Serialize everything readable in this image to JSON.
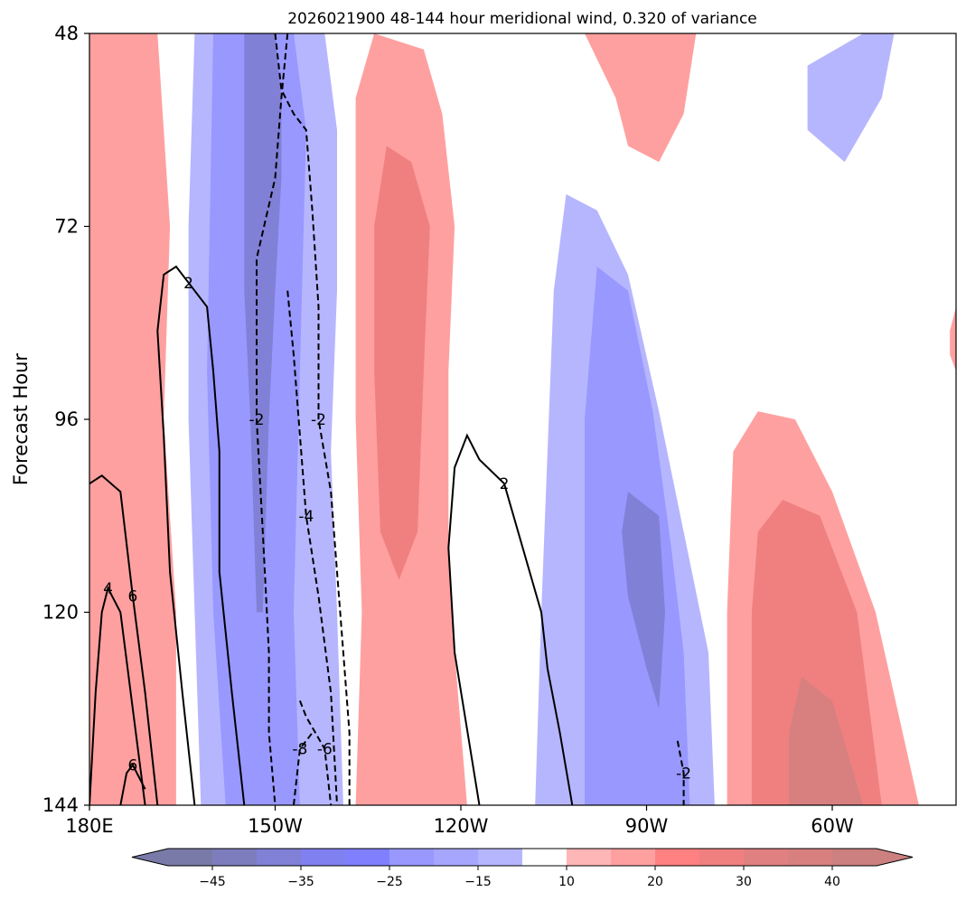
{
  "chart_data": {
    "type": "heatmap",
    "title": "2026021900 48-144 hour meridional wind, 0.320 of variance",
    "xlabel": "",
    "ylabel": "Forecast Hour",
    "x_ticks": [
      "180E",
      "150W",
      "120W",
      "90W",
      "60W"
    ],
    "x_tick_values": [
      -180,
      -150,
      -120,
      -90,
      -60
    ],
    "xlim": [
      -180,
      -40
    ],
    "y_ticks": [
      "48",
      "72",
      "96",
      "120",
      "144"
    ],
    "y_tick_values": [
      48,
      72,
      96,
      120,
      144
    ],
    "ylim": [
      144,
      48
    ],
    "colorbar": {
      "ticks": [
        "−45",
        "−35",
        "−25",
        "−15",
        "10",
        "20",
        "30",
        "40"
      ],
      "tick_values": [
        -45,
        -35,
        -25,
        -15,
        10,
        20,
        30,
        40
      ],
      "levels": [
        -50,
        -45,
        -40,
        -35,
        -30,
        -25,
        -20,
        -15,
        -10,
        10,
        15,
        20,
        25,
        30,
        35,
        40,
        45,
        50
      ],
      "colors": [
        "#7a7aa8",
        "#7d7dbd",
        "#8080d6",
        "#8080f0",
        "#8080ff",
        "#9898ff",
        "#a6a6ff",
        "#b6b6ff",
        "#ffffff",
        "#ffb6b6",
        "#ffa0a0",
        "#ff8080",
        "#f08080",
        "#e08080",
        "#d88080",
        "#cc8080"
      ],
      "extend": "both"
    },
    "contour_labels": [
      "-2",
      "-2",
      "-4",
      "-6",
      "-8",
      "-2",
      "2",
      "2",
      "4",
      "6"
    ],
    "fill_regions": [
      {
        "level": 25,
        "polygon": [
          [
            -180,
            48
          ],
          [
            -172,
            48
          ],
          [
            -171,
            60
          ],
          [
            -170,
            72
          ],
          [
            -172,
            84
          ],
          [
            -170,
            100
          ],
          [
            -169,
            120
          ],
          [
            -168,
            144
          ],
          [
            -180,
            144
          ]
        ]
      },
      {
        "level": 20,
        "polygon": [
          [
            -180,
            48
          ],
          [
            -177,
            48
          ],
          [
            -176,
            72
          ],
          [
            -177,
            96
          ],
          [
            -176,
            120
          ],
          [
            -176,
            144
          ],
          [
            -180,
            144
          ]
        ]
      },
      {
        "level": 15,
        "polygon": [
          [
            -180,
            48
          ],
          [
            -169,
            48
          ],
          [
            -168,
            60
          ],
          [
            -167,
            72
          ],
          [
            -168,
            96
          ],
          [
            -166,
            120
          ],
          [
            -166,
            144
          ],
          [
            -180,
            144
          ]
        ]
      },
      {
        "level": -15,
        "polygon": [
          [
            -163,
            48
          ],
          [
            -142,
            48
          ],
          [
            -140,
            60
          ],
          [
            -140,
            80
          ],
          [
            -141,
            100
          ],
          [
            -140,
            120
          ],
          [
            -139,
            144
          ],
          [
            -162,
            144
          ],
          [
            -163,
            120
          ],
          [
            -164,
            96
          ],
          [
            -164,
            72
          ]
        ]
      },
      {
        "level": -25,
        "polygon": [
          [
            -160,
            48
          ],
          [
            -147,
            48
          ],
          [
            -145,
            60
          ],
          [
            -146,
            90
          ],
          [
            -147,
            120
          ],
          [
            -146,
            144
          ],
          [
            -158,
            144
          ],
          [
            -160,
            120
          ],
          [
            -161,
            90
          ]
        ]
      },
      {
        "level": -40,
        "polygon": [
          [
            -155,
            48
          ],
          [
            -150,
            48
          ],
          [
            -149,
            56
          ],
          [
            -149,
            66
          ],
          [
            -150,
            80
          ],
          [
            -151,
            96
          ],
          [
            -152,
            120
          ],
          [
            -153,
            120
          ],
          [
            -154,
            96
          ],
          [
            -155,
            80
          ],
          [
            -155,
            60
          ]
        ]
      },
      {
        "level": 15,
        "polygon": [
          [
            -134,
            48
          ],
          [
            -126,
            50
          ],
          [
            -123,
            58
          ],
          [
            -121,
            72
          ],
          [
            -122,
            90
          ],
          [
            -122,
            110
          ],
          [
            -121,
            125
          ],
          [
            -119,
            144
          ],
          [
            -137,
            144
          ],
          [
            -136,
            120
          ],
          [
            -137,
            96
          ],
          [
            -137,
            72
          ],
          [
            -137,
            56
          ]
        ]
      },
      {
        "level": 25,
        "polygon": [
          [
            -132,
            62
          ],
          [
            -128,
            64
          ],
          [
            -125,
            72
          ],
          [
            -126,
            90
          ],
          [
            -127,
            110
          ],
          [
            -130,
            116
          ],
          [
            -133,
            110
          ],
          [
            -134,
            90
          ],
          [
            -134,
            72
          ]
        ]
      },
      {
        "level": 15,
        "polygon": [
          [
            -100,
            48
          ],
          [
            -82,
            48
          ],
          [
            -84,
            58
          ],
          [
            -88,
            64
          ],
          [
            -93,
            62
          ],
          [
            -95,
            56
          ]
        ]
      },
      {
        "level": -15,
        "polygon": [
          [
            -103,
            68
          ],
          [
            -98,
            70
          ],
          [
            -93,
            78
          ],
          [
            -88,
            95
          ],
          [
            -84,
            110
          ],
          [
            -80,
            125
          ],
          [
            -79,
            144
          ],
          [
            -108,
            144
          ],
          [
            -107,
            120
          ],
          [
            -106,
            100
          ],
          [
            -105,
            80
          ]
        ]
      },
      {
        "level": -25,
        "polygon": [
          [
            -98,
            77
          ],
          [
            -93,
            80
          ],
          [
            -89,
            95
          ],
          [
            -86,
            112
          ],
          [
            -84,
            125
          ],
          [
            -83,
            144
          ],
          [
            -100,
            144
          ],
          [
            -100,
            120
          ],
          [
            -100,
            96
          ]
        ]
      },
      {
        "level": -40,
        "polygon": [
          [
            -93,
            105
          ],
          [
            -88,
            108
          ],
          [
            -87,
            120
          ],
          [
            -88,
            132
          ],
          [
            -90,
            127
          ],
          [
            -93,
            118
          ],
          [
            -94,
            110
          ]
        ]
      },
      {
        "level": -15,
        "polygon": [
          [
            -64,
            52
          ],
          [
            -55,
            48
          ],
          [
            -50,
            48
          ],
          [
            -52,
            56
          ],
          [
            -58,
            64
          ],
          [
            -61,
            62
          ],
          [
            -64,
            60
          ]
        ]
      },
      {
        "level": 15,
        "polygon": [
          [
            -72,
            95
          ],
          [
            -66,
            96
          ],
          [
            -60,
            105
          ],
          [
            -53,
            120
          ],
          [
            -46,
            144
          ],
          [
            -77,
            144
          ],
          [
            -77,
            120
          ],
          [
            -76,
            100
          ]
        ]
      },
      {
        "level": 25,
        "polygon": [
          [
            -68,
            106
          ],
          [
            -62,
            108
          ],
          [
            -56,
            120
          ],
          [
            -52,
            144
          ],
          [
            -73,
            144
          ],
          [
            -73,
            120
          ],
          [
            -72,
            110
          ]
        ]
      },
      {
        "level": 35,
        "polygon": [
          [
            -65,
            128
          ],
          [
            -60,
            131
          ],
          [
            -55,
            144
          ],
          [
            -67,
            144
          ],
          [
            -67,
            135
          ]
        ]
      },
      {
        "level": 15,
        "polygon": [
          [
            -41,
            85
          ],
          [
            -40,
            82
          ],
          [
            -40,
            90
          ],
          [
            -41,
            88
          ]
        ]
      }
    ],
    "contour_lines": [
      {
        "label": "-2",
        "style": "dashed",
        "points": [
          [
            -150,
            48
          ],
          [
            -149,
            55
          ],
          [
            -147,
            58
          ],
          [
            -145,
            60
          ],
          [
            -144,
            70
          ],
          [
            -143,
            82
          ],
          [
            -143,
            96
          ],
          [
            -141,
            105
          ],
          [
            -140,
            115
          ],
          [
            -139,
            125
          ],
          [
            -138,
            135
          ],
          [
            -138,
            144
          ]
        ]
      },
      {
        "label": "-2",
        "style": "dashed",
        "points": [
          [
            -148,
            48
          ],
          [
            -149,
            56
          ],
          [
            -150,
            66
          ],
          [
            -153,
            76
          ],
          [
            -153,
            86
          ],
          [
            -153,
            96
          ],
          [
            -152,
            110
          ],
          [
            -151,
            125
          ],
          [
            -151,
            135
          ],
          [
            -150,
            144
          ]
        ]
      },
      {
        "label": "-4",
        "style": "dashed",
        "points": [
          [
            -148,
            80
          ],
          [
            -147,
            88
          ],
          [
            -146,
            98
          ],
          [
            -145,
            108
          ],
          [
            -143,
            118
          ],
          [
            -141,
            130
          ],
          [
            -140,
            144
          ]
        ]
      },
      {
        "label": "-6",
        "style": "dashed",
        "points": [
          [
            -146,
            131
          ],
          [
            -145,
            133
          ],
          [
            -142,
            137
          ],
          [
            -141,
            144
          ]
        ]
      },
      {
        "label": "-8",
        "style": "dashed",
        "points": [
          [
            -147,
            144
          ],
          [
            -146,
            137
          ],
          [
            -144,
            135
          ]
        ]
      },
      {
        "label": "-2",
        "style": "dashed",
        "points": [
          [
            -85,
            136
          ],
          [
            -84,
            140
          ],
          [
            -84,
            144
          ]
        ]
      },
      {
        "label": "2",
        "style": "solid",
        "points": [
          [
            -163,
            144
          ],
          [
            -165,
            130
          ],
          [
            -167,
            115
          ],
          [
            -168,
            98
          ],
          [
            -169,
            85
          ],
          [
            -168,
            78
          ],
          [
            -166,
            77
          ],
          [
            -164,
            79
          ],
          [
            -161,
            82
          ],
          [
            -160,
            90
          ],
          [
            -159,
            100
          ],
          [
            -159,
            115
          ],
          [
            -157,
            130
          ],
          [
            -155,
            144
          ]
        ]
      },
      {
        "label": "2",
        "style": "solid",
        "points": [
          [
            -117,
            144
          ],
          [
            -121,
            125
          ],
          [
            -122,
            112
          ],
          [
            -121,
            102
          ],
          [
            -119,
            98
          ],
          [
            -117,
            101
          ],
          [
            -113,
            104
          ],
          [
            -110,
            112
          ],
          [
            -107,
            120
          ],
          [
            -106,
            127
          ],
          [
            -104,
            135
          ],
          [
            -102,
            144
          ]
        ]
      },
      {
        "label": "4",
        "style": "solid",
        "points": [
          [
            -180,
            144
          ],
          [
            -179,
            130
          ],
          [
            -178,
            120
          ],
          [
            -177,
            117
          ],
          [
            -175,
            120
          ],
          [
            -173,
            132
          ],
          [
            -171,
            144
          ]
        ]
      },
      {
        "label": "6",
        "style": "solid",
        "points": [
          [
            -180,
            104
          ],
          [
            -178,
            103
          ],
          [
            -175,
            105
          ],
          [
            -173,
            118
          ],
          [
            -171,
            130
          ],
          [
            -169,
            144
          ]
        ]
      },
      {
        "label": "6",
        "style": "solid",
        "points": [
          [
            -175,
            144
          ],
          [
            -174,
            140
          ],
          [
            -173,
            139
          ],
          [
            -171,
            142
          ]
        ]
      }
    ]
  }
}
